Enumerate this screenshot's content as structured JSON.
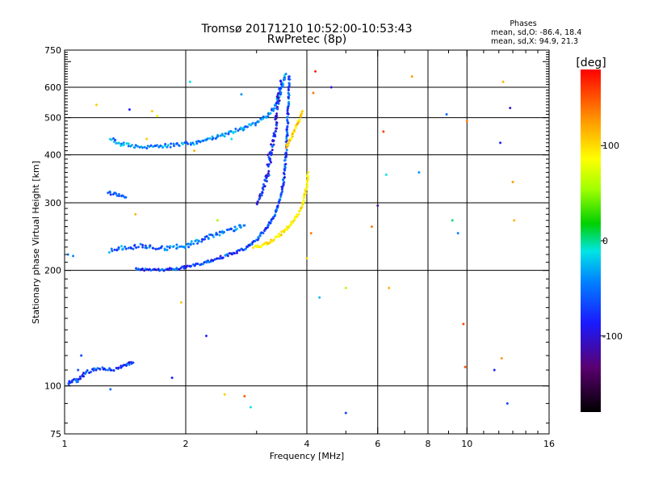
{
  "header": {
    "title_line1": "Tromsø 20171210 10:52:00-10:53:43",
    "title_line2": "RwPretec (8p)"
  },
  "stats": {
    "heading": "Phases",
    "line_o": "mean, sd,O: -86.4, 18.4",
    "line_x": "mean, sd,X:  94.9, 21.3"
  },
  "colorbar": {
    "label": "[deg]",
    "ticks": [
      "100",
      "0",
      "-100"
    ],
    "tick_values": [
      100,
      0,
      -100
    ],
    "range": [
      -180,
      180
    ]
  },
  "chart_data": {
    "type": "scatter",
    "xlabel": "Frequency [MHz]",
    "ylabel": "Stationary phase Virtual Height [km]",
    "xscale": "log",
    "yscale": "log",
    "xlim": [
      1,
      16
    ],
    "ylim": [
      75,
      750
    ],
    "xticks": [
      1,
      2,
      4,
      6,
      8,
      10,
      16
    ],
    "yticks": [
      75,
      100,
      200,
      300,
      400,
      500,
      600,
      750
    ],
    "xgrid": [
      2,
      4,
      6,
      8,
      10
    ],
    "ygrid": [
      100,
      200,
      300,
      400,
      500,
      600
    ],
    "traces": [
      {
        "id": "e-layer",
        "phase": -112,
        "jitter": 0.12,
        "points": [
          [
            1.02,
            101
          ],
          [
            1.05,
            104
          ],
          [
            1.08,
            103
          ],
          [
            1.12,
            108
          ],
          [
            1.18,
            110
          ],
          [
            1.25,
            111
          ],
          [
            1.32,
            110
          ],
          [
            1.38,
            112
          ],
          [
            1.43,
            114
          ],
          [
            1.48,
            115
          ]
        ]
      },
      {
        "id": "f-low-o",
        "phase": -110,
        "jitter": 0.1,
        "points": [
          [
            1.5,
            202
          ],
          [
            1.6,
            201
          ],
          [
            1.75,
            201
          ],
          [
            1.9,
            202
          ],
          [
            2.1,
            206
          ],
          [
            2.35,
            213
          ],
          [
            2.6,
            221
          ],
          [
            2.8,
            228
          ],
          [
            3.0,
            240
          ],
          [
            3.15,
            255
          ],
          [
            3.3,
            275
          ],
          [
            3.42,
            300
          ],
          [
            3.5,
            340
          ],
          [
            3.55,
            400
          ],
          [
            3.58,
            480
          ],
          [
            3.6,
            560
          ],
          [
            3.62,
            640
          ]
        ]
      },
      {
        "id": "f-x",
        "phase": 95,
        "jitter": 0.1,
        "points": [
          [
            2.95,
            230
          ],
          [
            3.1,
            232
          ],
          [
            3.3,
            240
          ],
          [
            3.5,
            252
          ],
          [
            3.65,
            265
          ],
          [
            3.8,
            280
          ],
          [
            3.92,
            300
          ],
          [
            4.0,
            330
          ],
          [
            4.03,
            360
          ]
        ]
      },
      {
        "id": "f-high-o",
        "phase": -92,
        "jitter": 0.14,
        "points": [
          [
            1.3,
            440
          ],
          [
            1.4,
            425
          ],
          [
            1.55,
            420
          ],
          [
            1.7,
            420
          ],
          [
            1.9,
            425
          ],
          [
            2.1,
            430
          ],
          [
            2.3,
            440
          ],
          [
            2.55,
            455
          ],
          [
            2.8,
            470
          ],
          [
            3.0,
            485
          ],
          [
            3.2,
            505
          ],
          [
            3.35,
            540
          ],
          [
            3.45,
            590
          ],
          [
            3.55,
            650
          ]
        ]
      },
      {
        "id": "f-mid",
        "phase": -118,
        "jitter": 0.22,
        "points": [
          [
            3.0,
            300
          ],
          [
            3.1,
            320
          ],
          [
            3.2,
            360
          ],
          [
            3.28,
            420
          ],
          [
            3.35,
            480
          ],
          [
            3.4,
            560
          ],
          [
            3.45,
            620
          ]
        ]
      },
      {
        "id": "f-upper-x",
        "phase": 108,
        "jitter": 0.1,
        "points": [
          [
            3.55,
            420
          ],
          [
            3.65,
            440
          ],
          [
            3.75,
            470
          ],
          [
            3.85,
            500
          ],
          [
            3.9,
            520
          ]
        ]
      },
      {
        "id": "f-lower-branch",
        "phase": -98,
        "jitter": 0.18,
        "points": [
          [
            1.3,
            225
          ],
          [
            1.45,
            230
          ],
          [
            1.6,
            232
          ],
          [
            1.8,
            228
          ],
          [
            2.0,
            232
          ],
          [
            2.3,
            245
          ],
          [
            2.6,
            255
          ],
          [
            2.8,
            262
          ]
        ]
      },
      {
        "id": "f-mid-branch",
        "phase": -105,
        "jitter": 0.12,
        "points": [
          [
            1.28,
            320
          ],
          [
            1.35,
            315
          ],
          [
            1.42,
            310
          ]
        ]
      }
    ],
    "scatter": [
      {
        "x": 1.02,
        "y": 220,
        "phase": -95
      },
      {
        "x": 1.05,
        "y": 218,
        "phase": -95
      },
      {
        "x": 1.08,
        "y": 110,
        "phase": -110
      },
      {
        "x": 1.1,
        "y": 120,
        "phase": -110
      },
      {
        "x": 1.2,
        "y": 540,
        "phase": 110
      },
      {
        "x": 1.3,
        "y": 98,
        "phase": -100
      },
      {
        "x": 1.45,
        "y": 525,
        "phase": -120
      },
      {
        "x": 1.5,
        "y": 280,
        "phase": 120
      },
      {
        "x": 1.6,
        "y": 440,
        "phase": 110
      },
      {
        "x": 1.65,
        "y": 520,
        "phase": 110
      },
      {
        "x": 1.7,
        "y": 505,
        "phase": 95
      },
      {
        "x": 1.85,
        "y": 105,
        "phase": -120
      },
      {
        "x": 1.95,
        "y": 165,
        "phase": 110
      },
      {
        "x": 2.05,
        "y": 620,
        "phase": -70
      },
      {
        "x": 2.1,
        "y": 410,
        "phase": 120
      },
      {
        "x": 2.25,
        "y": 135,
        "phase": -120
      },
      {
        "x": 2.4,
        "y": 270,
        "phase": 30
      },
      {
        "x": 2.5,
        "y": 95,
        "phase": 110
      },
      {
        "x": 2.6,
        "y": 440,
        "phase": -70
      },
      {
        "x": 2.75,
        "y": 575,
        "phase": -90
      },
      {
        "x": 2.8,
        "y": 94,
        "phase": 150
      },
      {
        "x": 2.9,
        "y": 88,
        "phase": -70
      },
      {
        "x": 3.2,
        "y": 400,
        "phase": -140
      },
      {
        "x": 4.0,
        "y": 215,
        "phase": 110
      },
      {
        "x": 4.1,
        "y": 250,
        "phase": 140
      },
      {
        "x": 4.15,
        "y": 580,
        "phase": 140
      },
      {
        "x": 4.2,
        "y": 660,
        "phase": 170
      },
      {
        "x": 4.3,
        "y": 170,
        "phase": -80
      },
      {
        "x": 4.6,
        "y": 600,
        "phase": -130
      },
      {
        "x": 5.0,
        "y": 180,
        "phase": 40
      },
      {
        "x": 5.0,
        "y": 85,
        "phase": -110
      },
      {
        "x": 5.8,
        "y": 260,
        "phase": 140
      },
      {
        "x": 6.0,
        "y": 295,
        "phase": -140
      },
      {
        "x": 6.2,
        "y": 460,
        "phase": 160
      },
      {
        "x": 6.3,
        "y": 355,
        "phase": -70
      },
      {
        "x": 6.4,
        "y": 180,
        "phase": 120
      },
      {
        "x": 7.3,
        "y": 640,
        "phase": 130
      },
      {
        "x": 7.6,
        "y": 360,
        "phase": -90
      },
      {
        "x": 8.9,
        "y": 510,
        "phase": -100
      },
      {
        "x": 9.2,
        "y": 270,
        "phase": -50
      },
      {
        "x": 9.5,
        "y": 250,
        "phase": -95
      },
      {
        "x": 9.8,
        "y": 145,
        "phase": 160
      },
      {
        "x": 9.9,
        "y": 112,
        "phase": 155
      },
      {
        "x": 10.0,
        "y": 490,
        "phase": 140
      },
      {
        "x": 11.7,
        "y": 110,
        "phase": -120
      },
      {
        "x": 12.1,
        "y": 430,
        "phase": -120
      },
      {
        "x": 12.3,
        "y": 620,
        "phase": 120
      },
      {
        "x": 12.6,
        "y": 90,
        "phase": -110
      },
      {
        "x": 12.8,
        "y": 530,
        "phase": -130
      },
      {
        "x": 13.0,
        "y": 340,
        "phase": 130
      },
      {
        "x": 13.1,
        "y": 270,
        "phase": 120
      },
      {
        "x": 12.2,
        "y": 118,
        "phase": 130
      }
    ]
  }
}
